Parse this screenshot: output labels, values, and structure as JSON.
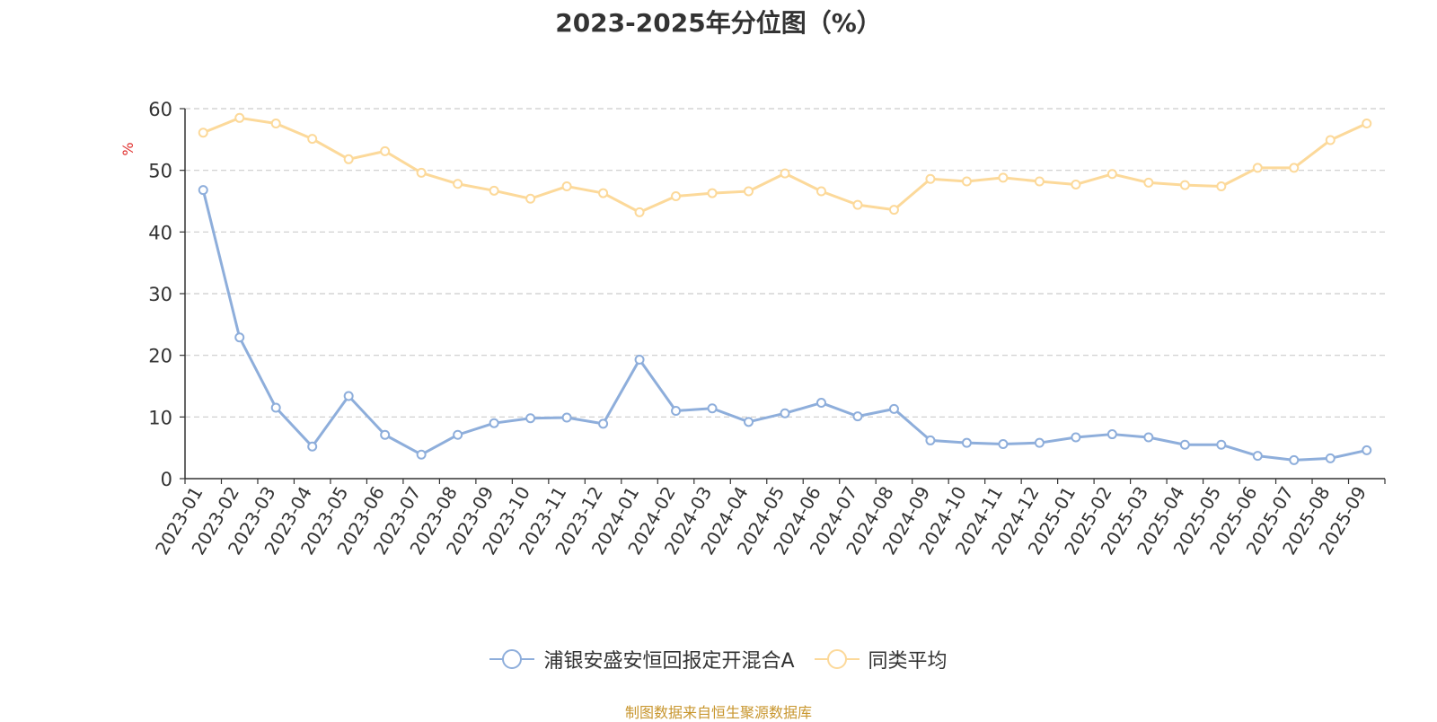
{
  "title": "2023-2025年分位图（%）",
  "source": "制图数据来自恒生聚源数据库",
  "chart_data": {
    "type": "line",
    "title": "2023-2025年分位图（%）",
    "ylabel": "%",
    "xlabel": "",
    "ylim": [
      0,
      60
    ],
    "yticks": [
      0,
      10,
      20,
      30,
      40,
      50,
      60
    ],
    "grid": true,
    "legend_position": "bottom",
    "categories": [
      "2023-01",
      "2023-02",
      "2023-03",
      "2023-04",
      "2023-05",
      "2023-06",
      "2023-07",
      "2023-08",
      "2023-09",
      "2023-10",
      "2023-11",
      "2023-12",
      "2024-01",
      "2024-02",
      "2024-03",
      "2024-04",
      "2024-05",
      "2024-06",
      "2024-07",
      "2024-08",
      "2024-09",
      "2024-10",
      "2024-11",
      "2024-12",
      "2025-01",
      "2025-02",
      "2025-03",
      "2025-04",
      "2025-05",
      "2025-06",
      "2025-07",
      "2025-08",
      "2025-09"
    ],
    "series": [
      {
        "name": "浦银安盛安恒回报定开混合A",
        "color": "#8eaedb",
        "values": [
          46.8,
          22.9,
          11.5,
          5.2,
          13.4,
          7.1,
          3.9,
          7.1,
          9.0,
          9.8,
          9.9,
          8.9,
          19.3,
          11.0,
          11.4,
          9.2,
          10.6,
          12.3,
          10.1,
          11.3,
          6.2,
          5.8,
          5.6,
          5.8,
          6.7,
          7.2,
          6.7,
          5.5,
          5.5,
          3.7,
          3.0,
          3.3,
          4.6
        ]
      },
      {
        "name": "同类平均",
        "color": "#fcd99a",
        "values": [
          56.1,
          58.5,
          57.6,
          55.1,
          51.8,
          53.1,
          49.6,
          47.8,
          46.7,
          45.4,
          47.4,
          46.3,
          43.2,
          45.8,
          46.3,
          46.6,
          49.5,
          46.6,
          44.4,
          43.6,
          48.6,
          48.2,
          48.8,
          48.2,
          47.7,
          49.4,
          48.0,
          47.6,
          47.4,
          50.4,
          50.4,
          54.9,
          57.6
        ]
      }
    ]
  }
}
